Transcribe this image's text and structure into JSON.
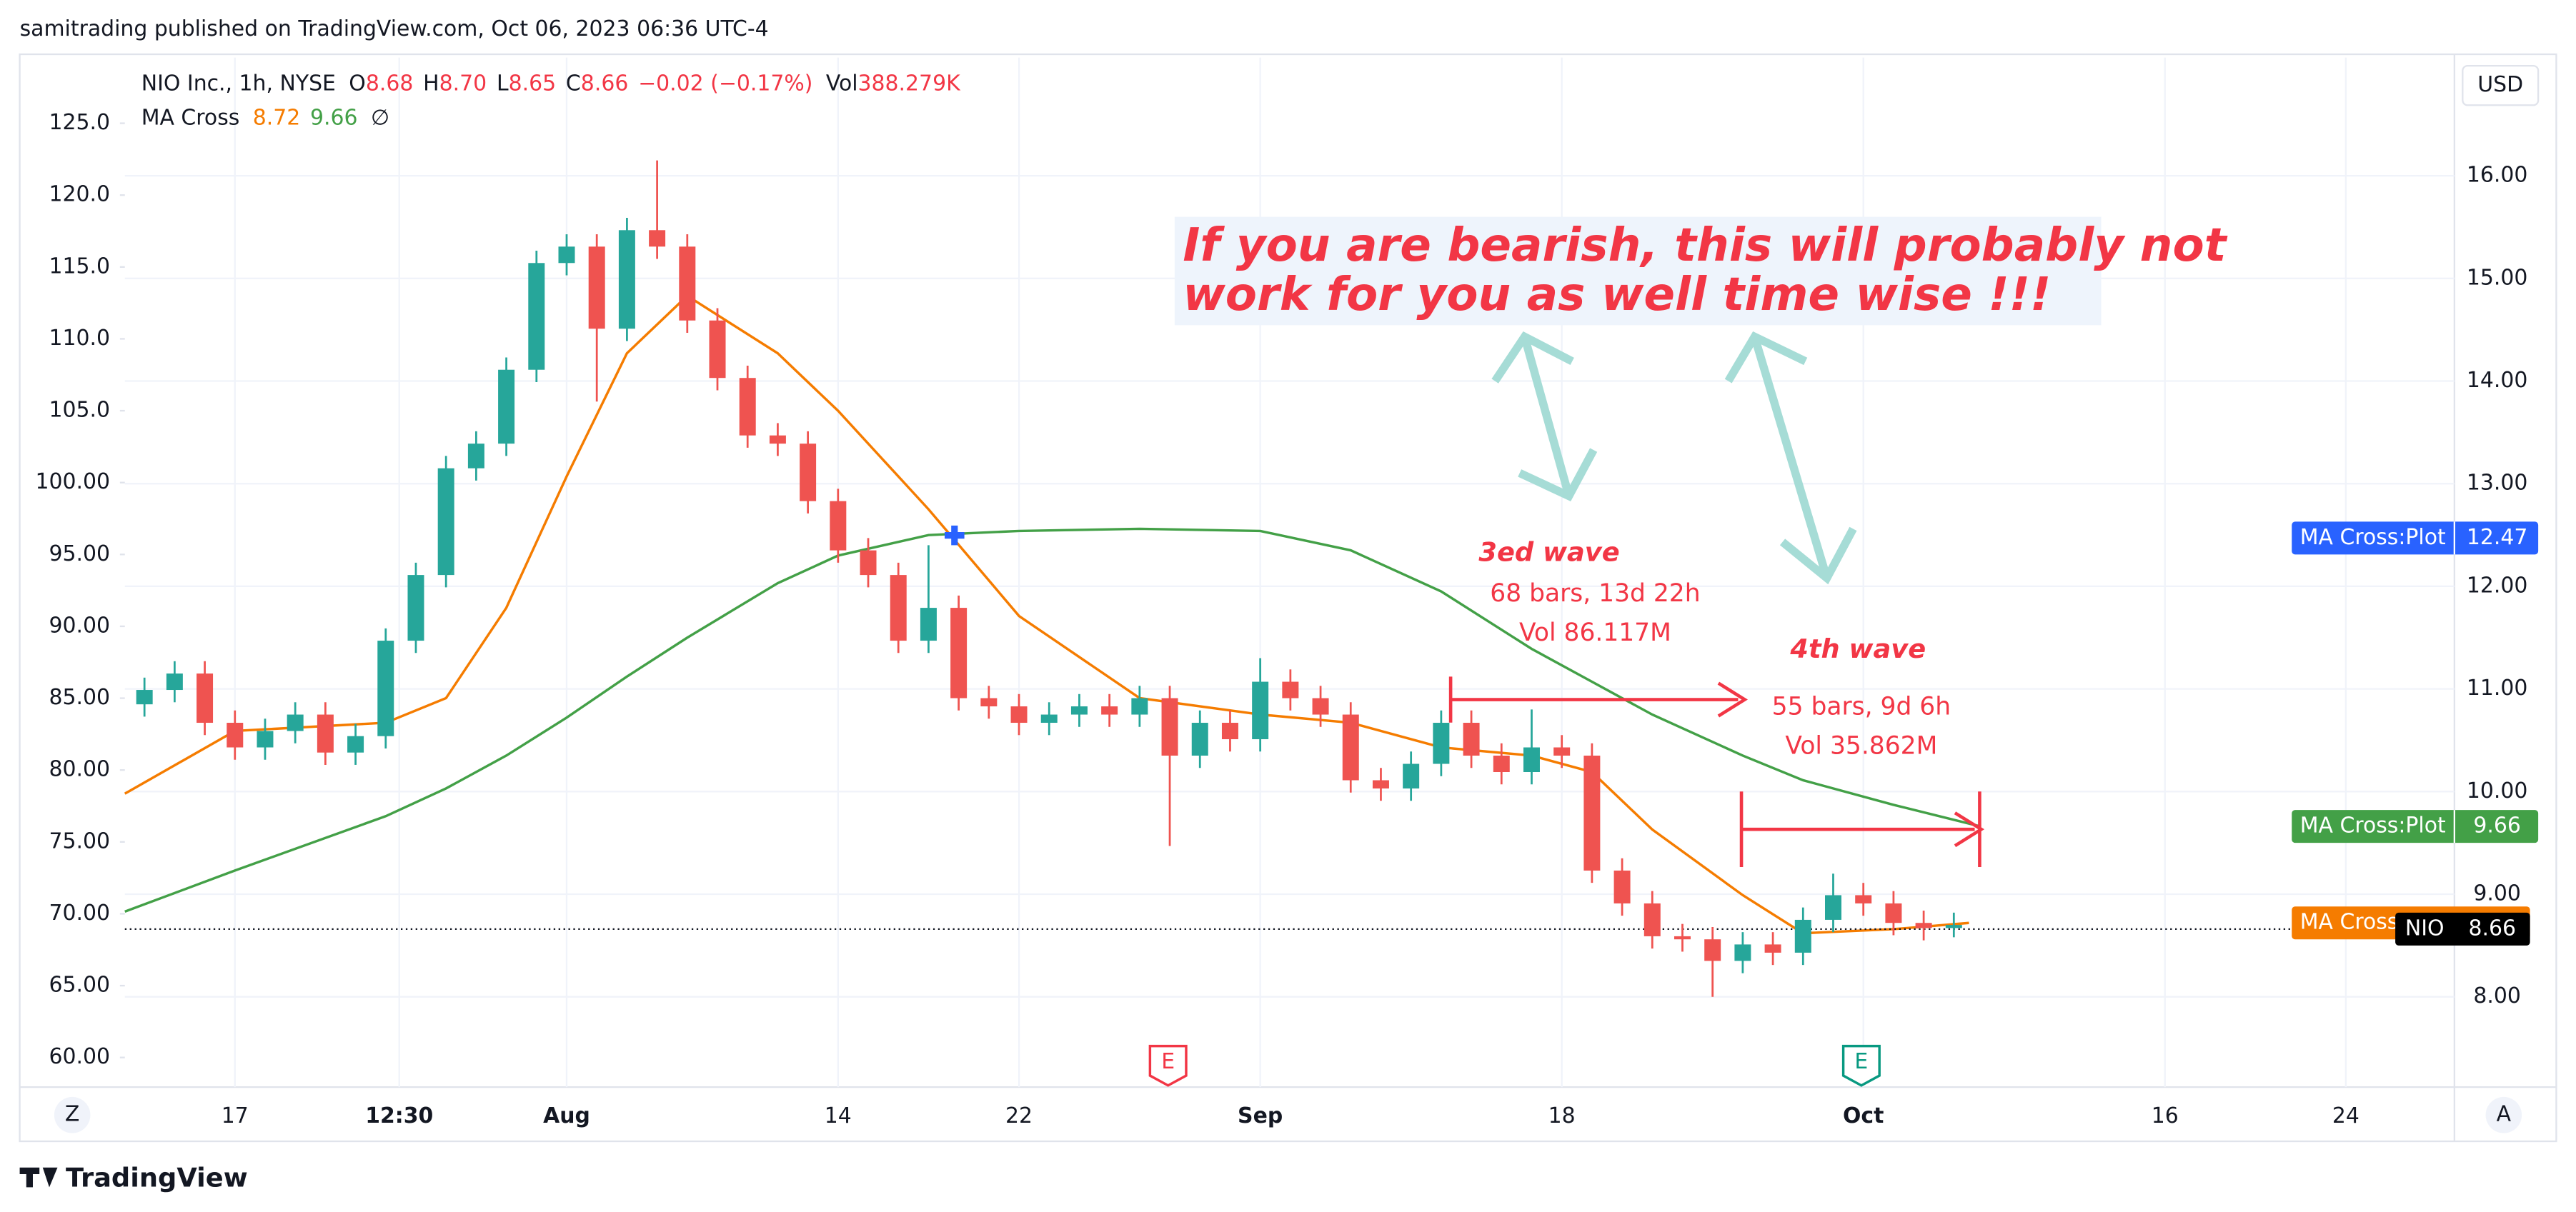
{
  "header": "samitrading published on TradingView.com, Oct 06, 2023 06:36 UTC-4",
  "footer": "TradingView",
  "chart_data": {
    "type": "candlestick",
    "currency": "USD",
    "legend": {
      "symbol": "NIO Inc., 1h, NYSE",
      "o_label": "O",
      "open": "8.68",
      "h_label": "H",
      "high": "8.70",
      "l_label": "L",
      "low": "8.65",
      "c_label": "C",
      "close": "8.66",
      "change": "−0.02 (−0.17%)",
      "vol_label": "Vol",
      "volume": "388.279K",
      "indicator": "MA Cross",
      "ma_fast": "8.72",
      "ma_slow": "9.66",
      "flag": "∅"
    },
    "up_color": "#26a69a",
    "down_color": "#ef5350",
    "x": [
      -3,
      -2,
      -1,
      0,
      1,
      2,
      3,
      4,
      5,
      6,
      7,
      8,
      9,
      10,
      11,
      12,
      13,
      14,
      15,
      16,
      17,
      18,
      19,
      20,
      21,
      22,
      23,
      24,
      25,
      26,
      27,
      28,
      29,
      30,
      31,
      32,
      33,
      34,
      35,
      36,
      37,
      38,
      39,
      40,
      41,
      42,
      43,
      44,
      45,
      46,
      47,
      48,
      49,
      50,
      51,
      52,
      53,
      54,
      55,
      56,
      57
    ],
    "open": [
      10.85,
      10.99,
      11.15,
      10.67,
      10.43,
      10.59,
      10.75,
      10.38,
      10.54,
      11.47,
      12.11,
      13.15,
      13.39,
      14.11,
      15.15,
      15.31,
      14.51,
      15.47,
      15.31,
      14.59,
      14.03,
      13.47,
      13.39,
      12.83,
      12.35,
      12.11,
      11.47,
      11.79,
      10.91,
      10.83,
      10.67,
      10.75,
      10.83,
      10.75,
      10.91,
      10.35,
      10.67,
      10.51,
      11.07,
      10.91,
      10.75,
      10.11,
      10.03,
      10.27,
      10.67,
      10.35,
      10.19,
      10.43,
      10.35,
      9.23,
      8.91,
      8.59,
      8.56,
      8.35,
      8.51,
      8.43,
      8.75,
      8.99,
      8.91,
      8.72,
      8.67
    ],
    "high": [
      11.11,
      11.27,
      11.27,
      10.79,
      10.71,
      10.87,
      10.87,
      10.66,
      11.59,
      12.23,
      13.27,
      13.51,
      14.23,
      15.27,
      15.43,
      15.43,
      15.59,
      16.15,
      15.43,
      14.71,
      14.15,
      13.59,
      13.51,
      12.95,
      12.47,
      12.23,
      12.4,
      11.91,
      11.03,
      10.95,
      10.87,
      10.95,
      10.95,
      11.03,
      11.03,
      10.79,
      10.79,
      11.3,
      11.19,
      11.03,
      10.87,
      10.23,
      10.39,
      10.79,
      10.79,
      10.47,
      10.8,
      10.55,
      10.47,
      9.35,
      9.03,
      8.71,
      8.68,
      8.63,
      8.63,
      8.87,
      9.2,
      9.11,
      9.03,
      8.84,
      8.82
    ],
    "low": [
      10.73,
      10.87,
      10.55,
      10.31,
      10.31,
      10.47,
      10.26,
      10.26,
      10.42,
      11.35,
      11.99,
      13.03,
      13.27,
      13.99,
      15.03,
      13.8,
      14.39,
      15.19,
      14.47,
      13.91,
      13.35,
      13.27,
      12.71,
      12.23,
      11.99,
      11.35,
      11.35,
      10.79,
      10.71,
      10.55,
      10.55,
      10.63,
      10.63,
      10.63,
      9.47,
      10.23,
      10.39,
      10.39,
      10.79,
      10.63,
      9.99,
      9.91,
      9.91,
      10.15,
      10.23,
      10.07,
      10.07,
      10.23,
      9.11,
      8.79,
      8.47,
      8.44,
      8.0,
      8.23,
      8.31,
      8.31,
      8.63,
      8.79,
      8.6,
      8.55,
      8.58
    ],
    "close": [
      10.99,
      11.15,
      10.67,
      10.43,
      10.59,
      10.75,
      10.38,
      10.54,
      11.47,
      12.11,
      13.15,
      13.39,
      14.11,
      15.15,
      15.31,
      14.51,
      15.47,
      15.31,
      14.59,
      14.03,
      13.47,
      13.39,
      12.83,
      12.35,
      12.11,
      11.47,
      11.79,
      10.91,
      10.83,
      10.67,
      10.75,
      10.83,
      10.75,
      10.91,
      10.35,
      10.67,
      10.51,
      11.07,
      10.91,
      10.75,
      10.11,
      10.03,
      10.27,
      10.67,
      10.35,
      10.19,
      10.43,
      10.35,
      9.23,
      8.91,
      8.59,
      8.56,
      8.35,
      8.51,
      8.43,
      8.75,
      8.99,
      8.91,
      8.72,
      8.67,
      8.7
    ],
    "series": [
      {
        "name": "MA Cross",
        "color": "#f57c00",
        "x": [
          -3.65,
          0,
          5,
          7,
          9,
          11,
          13,
          15,
          18,
          20,
          23,
          26,
          30,
          34,
          37,
          40,
          43,
          45,
          47,
          50,
          52,
          55,
          57.5
        ],
        "values": [
          9.98,
          10.59,
          10.67,
          10.91,
          11.79,
          13.07,
          14.27,
          14.83,
          14.27,
          13.71,
          12.75,
          11.71,
          10.91,
          10.75,
          10.67,
          10.43,
          10.35,
          10.19,
          9.63,
          8.99,
          8.62,
          8.66,
          8.72
        ]
      },
      {
        "name": "MA Cross:Plot",
        "color": "#43a047",
        "x": [
          -3.65,
          0,
          5,
          7,
          9,
          11,
          13,
          15,
          18,
          20,
          23,
          26,
          30,
          34,
          37,
          40,
          43,
          45,
          47,
          50,
          52,
          55,
          57.9
        ],
        "values": [
          8.83,
          9.23,
          9.76,
          10.03,
          10.35,
          10.72,
          11.12,
          11.5,
          12.03,
          12.3,
          12.5,
          12.54,
          12.56,
          12.54,
          12.35,
          11.95,
          11.39,
          11.07,
          10.75,
          10.35,
          10.11,
          9.87,
          9.66
        ]
      }
    ],
    "xlim": [
      -3.65,
      73.6
    ],
    "xticks": [
      {
        "value": 0,
        "label": "17"
      },
      {
        "value": 5.45,
        "label": "12:30"
      },
      {
        "value": 11,
        "label": "Aug"
      },
      {
        "value": 20,
        "label": "14"
      },
      {
        "value": 26,
        "label": "22"
      },
      {
        "value": 34,
        "label": "Sep"
      },
      {
        "value": 44,
        "label": "18"
      },
      {
        "value": 54,
        "label": "Oct"
      },
      {
        "value": 64,
        "label": "16"
      },
      {
        "value": 70,
        "label": "24"
      }
    ],
    "ylim": [
      7.12,
      17.152
    ],
    "yticks": [
      {
        "value": 8,
        "label": "8.00"
      },
      {
        "value": 9,
        "label": "9.00"
      },
      {
        "value": 10,
        "label": "10.00"
      },
      {
        "value": 11,
        "label": "11.00"
      },
      {
        "value": 12,
        "label": "12.00"
      },
      {
        "value": 13,
        "label": "13.00"
      },
      {
        "value": 14,
        "label": "14.00"
      },
      {
        "value": 15,
        "label": "15.00"
      },
      {
        "value": 16,
        "label": "16.00"
      }
    ],
    "y2lim": [
      57.94,
      129.57
    ],
    "y2ticks": [
      {
        "value": 60,
        "label": "60.00"
      },
      {
        "value": 65,
        "label": "65.00"
      },
      {
        "value": 70,
        "label": "70.00"
      },
      {
        "value": 75,
        "label": "75.00"
      },
      {
        "value": 80,
        "label": "80.00"
      },
      {
        "value": 85,
        "label": "85.00"
      },
      {
        "value": 90,
        "label": "90.00"
      },
      {
        "value": 95,
        "label": "95.00"
      },
      {
        "value": 100,
        "label": "100.00"
      },
      {
        "value": 105,
        "label": "105.0"
      },
      {
        "value": 110,
        "label": "110.0"
      },
      {
        "value": 115,
        "label": "115.0"
      },
      {
        "value": 120,
        "label": "120.0"
      },
      {
        "value": 125,
        "label": "125.0"
      }
    ],
    "price_labels": [
      {
        "name": "MA Cross:Plot",
        "value": 12.47,
        "color": "#2962ff"
      },
      {
        "name": "MA Cross:Plot",
        "value": 9.66,
        "color": "#43a047"
      },
      {
        "name": "MA Cross",
        "color": "#f57c00"
      },
      {
        "name": "NIO",
        "value": 8.66,
        "color": "#000000"
      }
    ],
    "annotations": {
      "note": [
        "If you are bearish, this will probably not",
        "work for you as well time wise !!!"
      ],
      "wave3": {
        "title": "3ed wave",
        "bars": "68 bars, 13d 22h",
        "vol": "Vol 86.117M"
      },
      "wave4": {
        "title": "4th wave",
        "bars": "55 bars, 9d 6h",
        "vol": "Vol 35.862M"
      }
    },
    "events": [
      "E",
      "E"
    ],
    "buttons": [
      "Z",
      "A"
    ]
  }
}
